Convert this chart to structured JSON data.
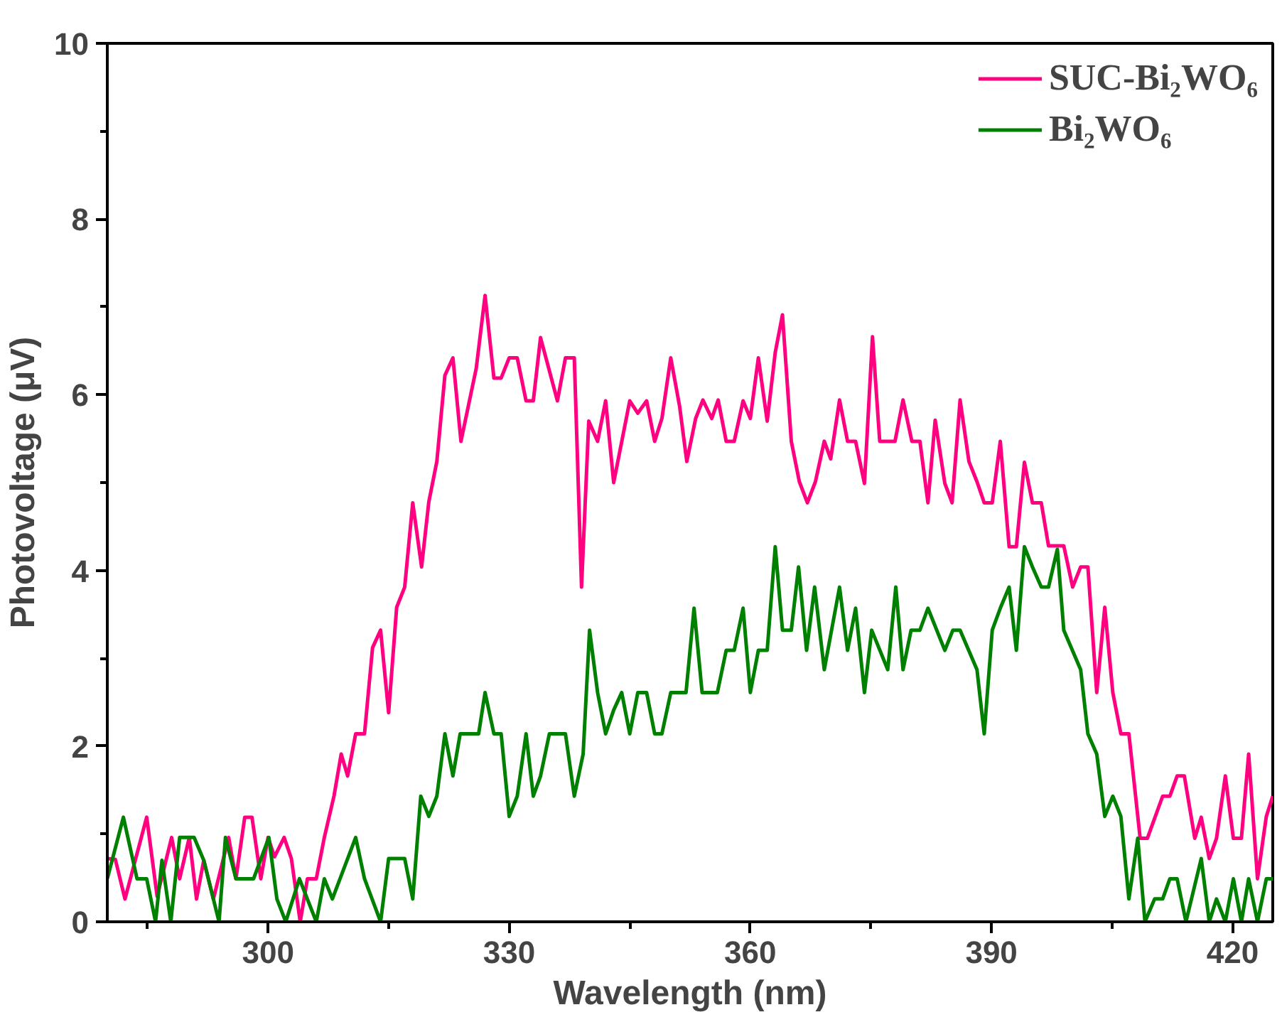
{
  "chart_data": {
    "type": "line",
    "xlabel": "Wavelength (nm)",
    "ylabel": "Photovoltage (μV)",
    "xlim": [
      280,
      425
    ],
    "ylim": [
      0,
      10
    ],
    "xticks": [
      {
        "value": 285,
        "label": null
      },
      300,
      {
        "value": 315,
        "label": null
      },
      330,
      {
        "value": 345,
        "label": null
      },
      360,
      {
        "value": 375,
        "label": null
      },
      390,
      {
        "value": 405,
        "label": null
      },
      420
    ],
    "yticks": [
      0,
      {
        "value": 1,
        "label": null
      },
      2,
      {
        "value": 3,
        "label": null
      },
      4,
      {
        "value": 5,
        "label": null
      },
      6,
      {
        "value": 7,
        "label": null
      },
      8,
      {
        "value": 9,
        "label": null
      },
      10
    ],
    "grid": false,
    "legend": "top right",
    "line_style": "solid",
    "marker": "none",
    "series": [
      {
        "name": "SUC-Bi₂WO₆",
        "color": "#ff0080",
        "x": [
          280,
          281,
          282.2,
          284.9,
          286.2,
          288,
          289,
          290.2,
          291.1,
          292,
          293.2,
          295.1,
          296,
          297.1,
          298,
          299.1,
          300,
          300.8,
          302,
          302.9,
          304,
          304.9,
          306,
          307,
          308.2,
          309.1,
          309.9,
          310.9,
          312,
          313,
          314,
          315,
          316,
          317,
          318,
          319.1,
          320,
          321,
          322,
          323,
          324,
          325.9,
          327,
          328.1,
          329,
          330,
          331,
          332.1,
          333,
          333.9,
          336,
          337,
          338.1,
          339,
          339.9,
          341,
          342,
          343,
          345,
          346,
          347.1,
          348.1,
          349,
          350.1,
          351.2,
          352.1,
          353.2,
          354.1,
          355.2,
          356,
          357,
          358,
          359.1,
          360,
          361,
          362.1,
          363.1,
          364,
          365.1,
          366.1,
          367.1,
          368.1,
          369.2,
          370,
          371.1,
          372.1,
          373.1,
          374.2,
          375.2,
          376.1,
          378,
          379,
          380.1,
          381.1,
          382.1,
          383,
          384.2,
          385.1,
          386.1,
          387.2,
          388.2,
          389.1,
          390.1,
          391.1,
          392.2,
          393.1,
          394.1,
          395.1,
          396.2,
          397.1,
          399,
          400.1,
          401.1,
          402,
          403.1,
          404.1,
          405.1,
          406.1,
          407.1,
          408.5,
          409.4,
          411.3,
          412.2,
          413.1,
          414,
          415.3,
          416.1,
          417.1,
          418,
          419.1,
          420.1,
          421.1,
          422,
          423.1,
          424.2,
          425
        ],
        "values": [
          0.72,
          0.71,
          0.26,
          1.19,
          0.29,
          0.96,
          0.49,
          0.96,
          0.26,
          0.7,
          0.26,
          0.96,
          0.49,
          1.19,
          1.19,
          0.49,
          0.96,
          0.74,
          0.96,
          0.72,
          0,
          0.49,
          0.49,
          0.96,
          1.43,
          1.91,
          1.66,
          2.14,
          2.14,
          3.12,
          3.32,
          2.38,
          3.58,
          3.81,
          4.77,
          4.04,
          4.78,
          5.24,
          6.22,
          6.42,
          5.47,
          6.3,
          7.13,
          6.19,
          6.19,
          6.42,
          6.42,
          5.93,
          5.93,
          6.65,
          5.93,
          6.42,
          6.42,
          3.81,
          5.7,
          5.47,
          5.93,
          5.0,
          5.93,
          5.79,
          5.93,
          5.47,
          5.73,
          6.42,
          5.87,
          5.24,
          5.73,
          5.94,
          5.73,
          5.94,
          5.47,
          5.47,
          5.93,
          5.73,
          6.42,
          5.7,
          6.48,
          6.91,
          5.47,
          5.01,
          4.77,
          5.01,
          5.47,
          5.27,
          5.94,
          5.47,
          5.47,
          4.99,
          6.66,
          5.47,
          5.47,
          5.94,
          5.47,
          5.47,
          4.77,
          5.71,
          4.99,
          4.77,
          5.94,
          5.24,
          5.01,
          4.77,
          4.77,
          5.47,
          4.27,
          4.27,
          5.23,
          4.77,
          4.77,
          4.28,
          4.28,
          3.81,
          4.04,
          4.04,
          2.61,
          3.58,
          2.61,
          2.14,
          2.14,
          0.95,
          0.95,
          1.43,
          1.43,
          1.66,
          1.66,
          0.95,
          1.19,
          0.72,
          0.95,
          1.66,
          0.95,
          0.95,
          1.91,
          0.49,
          1.2,
          1.43
        ]
      },
      {
        "name": "Bi₂WO₆",
        "color": "#008000",
        "x": [
          280,
          282,
          283.7,
          284.9,
          286,
          286.8,
          287.9,
          289,
          290.8,
          292,
          293.9,
          294.7,
          296,
          298.2,
          300.1,
          301.1,
          302.2,
          303.9,
          306,
          307,
          308,
          310.9,
          312,
          314,
          315,
          317,
          318,
          319,
          320,
          321,
          322,
          323,
          323.9,
          326.2,
          327,
          328.1,
          329,
          330,
          331,
          332.1,
          333,
          333.9,
          335,
          337,
          338.1,
          339.2,
          340,
          341,
          342,
          343,
          344,
          345,
          346,
          347.1,
          348.1,
          349,
          350.1,
          352,
          353,
          354,
          355.9,
          357,
          358,
          359.1,
          360,
          361,
          362.1,
          363.1,
          364,
          365.1,
          366,
          367,
          368,
          369.2,
          371.1,
          372.1,
          373.1,
          374.2,
          375.1,
          377.1,
          378.1,
          379,
          380,
          381.1,
          382.1,
          384.2,
          385.2,
          386.1,
          388.2,
          389.1,
          390.1,
          391.1,
          392.2,
          393.1,
          394.1,
          395.1,
          396.2,
          397.1,
          398.2,
          399,
          401.1,
          402,
          403.1,
          404.1,
          405.1,
          406.1,
          407.1,
          408.2,
          409.1,
          410.3,
          411.3,
          412.2,
          413.1,
          414.2,
          416.1,
          417.1,
          418,
          419.1,
          420.1,
          421.1,
          422,
          423.1,
          424.2,
          425
        ],
        "values": [
          0.49,
          1.19,
          0.49,
          0.49,
          0,
          0.7,
          0,
          0.96,
          0.96,
          0.7,
          0,
          0.96,
          0.49,
          0.49,
          0.96,
          0.26,
          0,
          0.49,
          0,
          0.49,
          0.26,
          0.96,
          0.49,
          0,
          0.72,
          0.72,
          0.26,
          1.43,
          1.2,
          1.43,
          2.14,
          1.66,
          2.14,
          2.14,
          2.61,
          2.14,
          2.14,
          1.2,
          1.43,
          2.14,
          1.43,
          1.66,
          2.14,
          2.14,
          1.43,
          1.91,
          3.32,
          2.61,
          2.14,
          2.41,
          2.61,
          2.14,
          2.61,
          2.61,
          2.14,
          2.14,
          2.61,
          2.61,
          3.57,
          2.61,
          2.61,
          3.09,
          3.09,
          3.57,
          2.61,
          3.09,
          3.09,
          4.27,
          3.32,
          3.32,
          4.04,
          3.09,
          3.81,
          2.87,
          3.81,
          3.09,
          3.57,
          2.61,
          3.32,
          2.87,
          3.81,
          2.87,
          3.32,
          3.32,
          3.57,
          3.09,
          3.32,
          3.32,
          2.87,
          2.14,
          3.32,
          3.57,
          3.81,
          3.09,
          4.27,
          4.04,
          3.81,
          3.81,
          4.24,
          3.32,
          2.87,
          2.14,
          1.91,
          1.2,
          1.43,
          1.2,
          0.26,
          0.95,
          0,
          0.26,
          0.26,
          0.49,
          0.49,
          0,
          0.72,
          0,
          0.26,
          0,
          0.49,
          0,
          0.49,
          0,
          0.49,
          0.49
        ]
      }
    ]
  }
}
